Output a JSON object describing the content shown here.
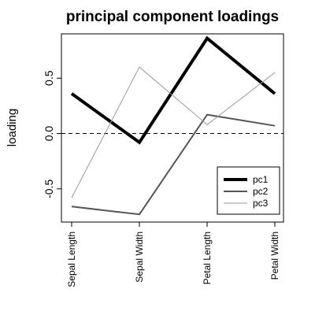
{
  "chart_data": {
    "type": "line",
    "title": "principal component loadings",
    "xlabel": "",
    "ylabel": "loading",
    "categories": [
      "Sepal Length",
      "Sepal Width",
      "Petal Length",
      "Petal Width"
    ],
    "y_ticks": [
      -0.5,
      0.0,
      0.5
    ],
    "y_tick_labels": [
      "-0.5",
      "0.0",
      "0.5"
    ],
    "ylim": [
      -0.8,
      0.9
    ],
    "reference_line": {
      "y": 0.0,
      "style": "dashed"
    },
    "legend_position": "bottom-right",
    "series": [
      {
        "name": "pc1",
        "values": [
          0.36,
          -0.08,
          0.86,
          0.36
        ],
        "color": "#000000"
      },
      {
        "name": "pc2",
        "values": [
          -0.66,
          -0.73,
          0.17,
          0.07
        ],
        "color": "#555555"
      },
      {
        "name": "pc3",
        "values": [
          -0.58,
          0.6,
          0.08,
          0.55
        ],
        "color": "#9a9a9a"
      }
    ]
  }
}
